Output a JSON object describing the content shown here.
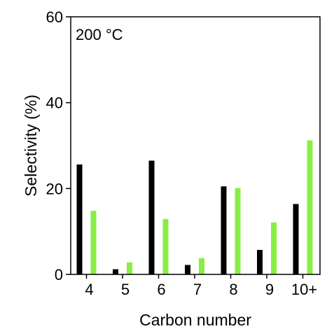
{
  "chart_data": {
    "type": "bar",
    "categories": [
      "4",
      "5",
      "6",
      "7",
      "8",
      "9",
      "10+"
    ],
    "series": [
      {
        "color": "#000000",
        "values": [
          25.6,
          1.2,
          26.5,
          2.2,
          20.5,
          5.7,
          16.4
        ]
      },
      {
        "color": "#88ee44",
        "values": [
          14.8,
          2.8,
          12.9,
          3.8,
          20.1,
          12.1,
          31.2
        ]
      }
    ],
    "ylim": [
      0,
      60
    ],
    "yticks": [
      0,
      20,
      40,
      60
    ],
    "xlabel": "Carbon number",
    "ylabel": "Selectivity (%)",
    "annotation": "200 °C",
    "grid": false,
    "legend": "none"
  }
}
